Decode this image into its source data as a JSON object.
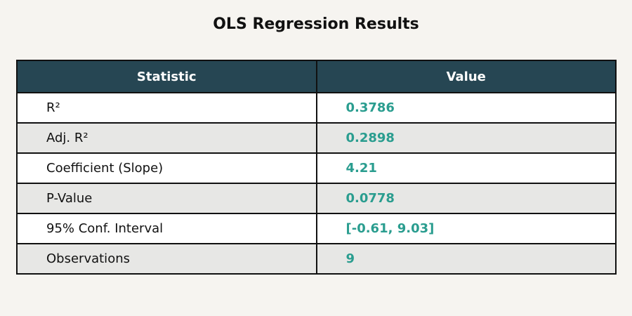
{
  "chart_data": {
    "type": "table",
    "title": "OLS Regression Results",
    "columns": [
      "Statistic",
      "Value"
    ],
    "rows": [
      {
        "statistic": "R²",
        "value": "0.3786"
      },
      {
        "statistic": "Adj. R²",
        "value": "0.2898"
      },
      {
        "statistic": "Coefficient (Slope)",
        "value": "4.21"
      },
      {
        "statistic": "P-Value",
        "value": "0.0778"
      },
      {
        "statistic": "95% Conf. Interval",
        "value": "[-0.61, 9.03]"
      },
      {
        "statistic": "Observations",
        "value": "9"
      }
    ]
  },
  "colors": {
    "header_bg": "#264653",
    "value_text": "#2a9d8f",
    "row_alt_bg": "#e7e7e5",
    "page_bg": "#f6f4f0"
  }
}
